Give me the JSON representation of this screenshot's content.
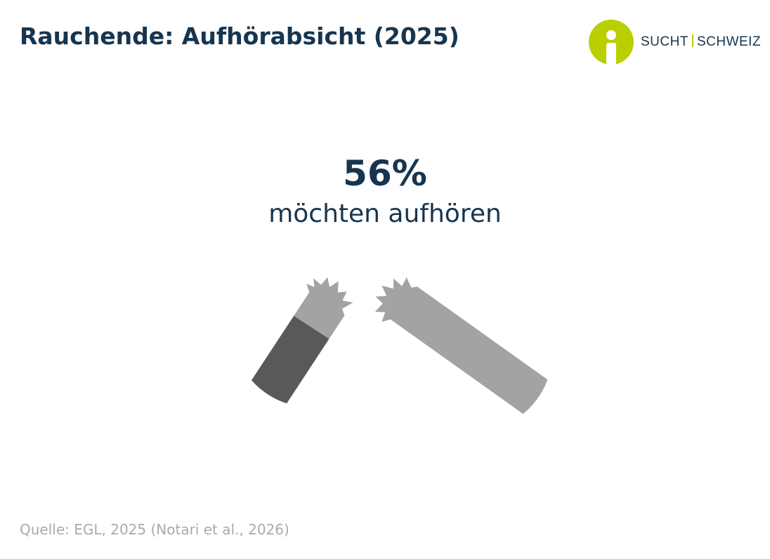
{
  "header": {
    "title": "Rauchende: Aufhörabsicht (2025)",
    "logo": {
      "left": "SUCHT",
      "right": "SCHWEIZ"
    }
  },
  "stat": {
    "value": "56%",
    "label": "möchten aufhören"
  },
  "source": "Quelle: EGL, 2025 (Notari et al., 2026)"
}
